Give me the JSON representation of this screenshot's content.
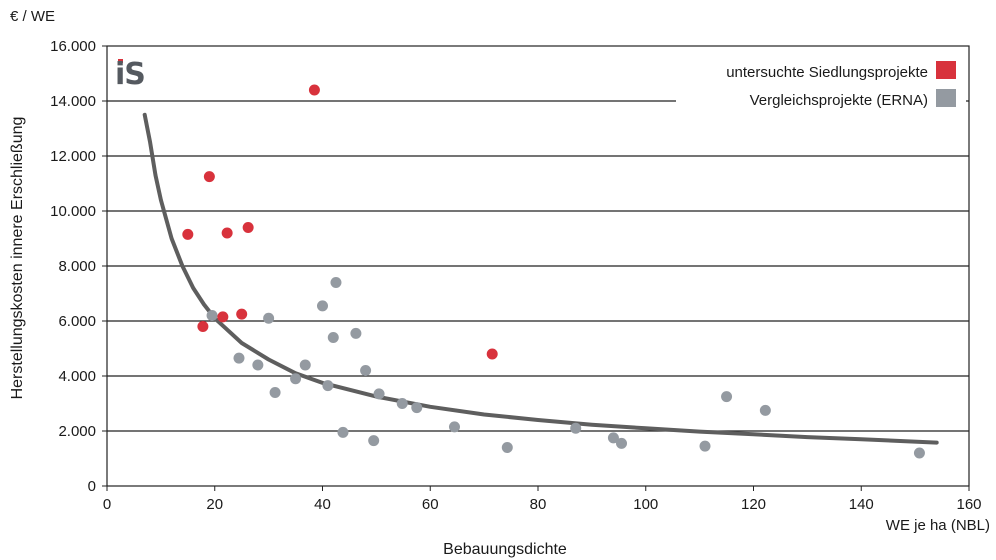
{
  "chart_data": {
    "type": "scatter",
    "y_unit_label": "€ / WE",
    "ylabel": "Herstellungskosten innere Erschließung",
    "x_unit_label": "WE je ha (NBL)",
    "xlabel": "Bebauungsdichte",
    "xlim": [
      0,
      160
    ],
    "ylim": [
      0,
      16000
    ],
    "x_ticks": [
      0,
      20,
      40,
      60,
      80,
      100,
      120,
      140,
      160
    ],
    "y_ticks": [
      0,
      2000,
      4000,
      6000,
      8000,
      10000,
      12000,
      14000,
      16000
    ],
    "x_tick_labels": [
      "0",
      "20",
      "40",
      "60",
      "80",
      "100",
      "120",
      "140",
      "160"
    ],
    "y_tick_labels": [
      "0",
      "2.000",
      "4.000",
      "6.000",
      "8.000",
      "10.000",
      "12.000",
      "14.000",
      "16.000"
    ],
    "grid": "horizontal",
    "legend_position": "top-right",
    "logo_text": "iS",
    "series": [
      {
        "name": "untersuchte Siedlungsprojekte",
        "color": "#d8323c",
        "points": [
          [
            15,
            9150
          ],
          [
            17.8,
            5800
          ],
          [
            19,
            11250
          ],
          [
            21.5,
            6150
          ],
          [
            22.3,
            9200
          ],
          [
            25,
            6250
          ],
          [
            26.2,
            9400
          ],
          [
            38.5,
            14400
          ],
          [
            71.5,
            4800
          ]
        ]
      },
      {
        "name": "Vergleichsprojekte (ERNA)",
        "color": "#949aa1",
        "points": [
          [
            19.5,
            6200
          ],
          [
            24.5,
            4650
          ],
          [
            28,
            4400
          ],
          [
            30,
            6100
          ],
          [
            31.2,
            3400
          ],
          [
            35,
            3900
          ],
          [
            36.8,
            4400
          ],
          [
            40,
            6550
          ],
          [
            41,
            3650
          ],
          [
            42,
            5400
          ],
          [
            42.5,
            7400
          ],
          [
            43.8,
            1950
          ],
          [
            46.2,
            5550
          ],
          [
            48,
            4200
          ],
          [
            49.5,
            1650
          ],
          [
            50.5,
            3350
          ],
          [
            54.8,
            3000
          ],
          [
            57.5,
            2850
          ],
          [
            64.5,
            2150
          ],
          [
            74.3,
            1400
          ],
          [
            87,
            2100
          ],
          [
            94,
            1750
          ],
          [
            95.5,
            1550
          ],
          [
            111,
            1450
          ],
          [
            115,
            3250
          ],
          [
            122.2,
            2750
          ],
          [
            150.8,
            1200
          ]
        ]
      }
    ],
    "trendline": {
      "type": "power",
      "color": "#5e5e5e",
      "x_range": [
        7,
        154
      ],
      "points": [
        [
          7,
          13500
        ],
        [
          8,
          12500
        ],
        [
          9,
          11300
        ],
        [
          10,
          10400
        ],
        [
          12,
          9000
        ],
        [
          14,
          8000
        ],
        [
          16,
          7200
        ],
        [
          18,
          6600
        ],
        [
          20,
          6100
        ],
        [
          25,
          5200
        ],
        [
          30,
          4600
        ],
        [
          35,
          4100
        ],
        [
          40,
          3750
        ],
        [
          50,
          3250
        ],
        [
          60,
          2880
        ],
        [
          70,
          2600
        ],
        [
          80,
          2400
        ],
        [
          90,
          2230
        ],
        [
          100,
          2100
        ],
        [
          110,
          1980
        ],
        [
          120,
          1880
        ],
        [
          130,
          1780
        ],
        [
          140,
          1700
        ],
        [
          154,
          1580
        ]
      ]
    }
  }
}
